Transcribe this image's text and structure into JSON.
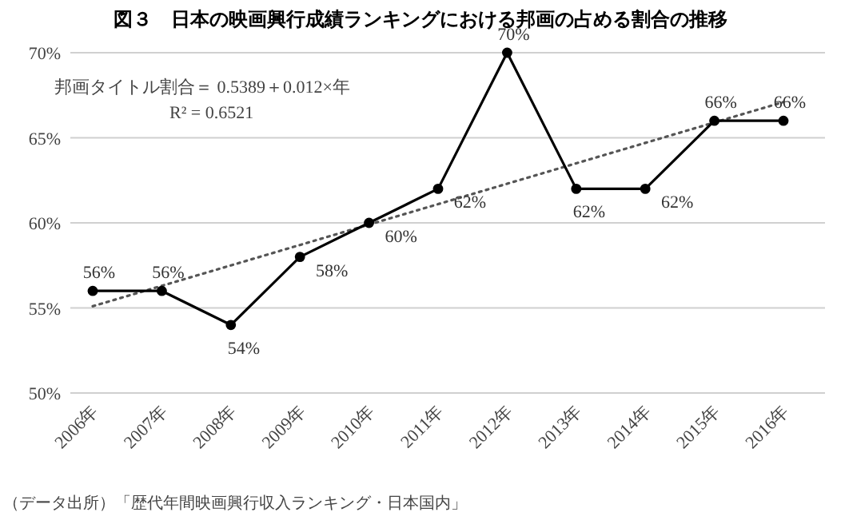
{
  "chart_data": {
    "type": "line",
    "title": "図３　日本の映画興行成績ランキングにおける邦画の占める割合の推移",
    "categories": [
      "2006年",
      "2007年",
      "2008年",
      "2009年",
      "2010年",
      "2011年",
      "2012年",
      "2013年",
      "2014年",
      "2015年",
      "2016年"
    ],
    "series": [
      {
        "color": "#000000",
        "values": [
          56,
          56,
          54,
          58,
          60,
          62,
          70,
          62,
          62,
          66,
          66
        ],
        "value_labels": [
          "56%",
          "56%",
          "54%",
          "58%",
          "60%",
          "62%",
          "70%",
          "62%",
          "62%",
          "66%",
          "66%"
        ],
        "marker": "circle",
        "line_style": "solid"
      },
      {
        "type": "line",
        "color": "#555555",
        "values": [
          55.1,
          56.3,
          57.5,
          58.7,
          59.9,
          61.1,
          62.3,
          63.5,
          64.7,
          65.9,
          67.1
        ],
        "marker": "none",
        "line_style": "dotted"
      }
    ],
    "ylim": [
      50,
      70
    ],
    "yticks": [
      {
        "value": 50,
        "label": "50%"
      },
      {
        "value": 55,
        "label": "55%"
      },
      {
        "value": 60,
        "label": "60%"
      },
      {
        "value": 65,
        "label": "65%"
      },
      {
        "value": 70,
        "label": "70%"
      }
    ],
    "grid": "y",
    "annotations": [
      "邦画タイトル割合＝ 0.5389＋0.012×年",
      "R² = 0.6521",
      "（データ出所）「歴代年間映画興行収入ランキング・日本国内」"
    ]
  }
}
